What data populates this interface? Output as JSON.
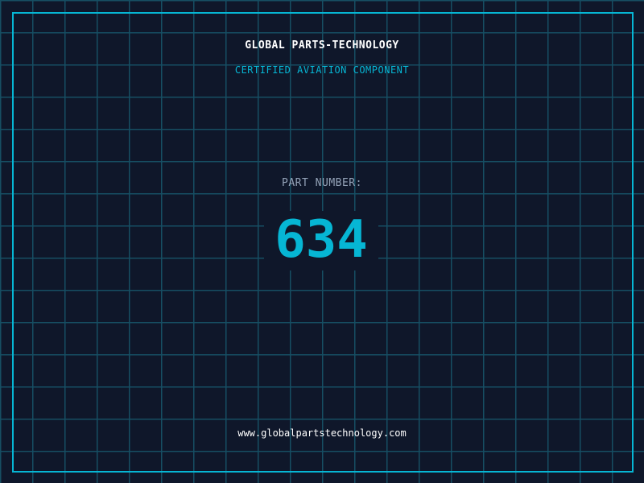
{
  "header": {
    "title": "GLOBAL PARTS-TECHNOLOGY",
    "subtitle": "CERTIFIED AVIATION COMPONENT"
  },
  "part": {
    "label": "PART NUMBER:",
    "number": "634"
  },
  "footer": {
    "url": "www.globalpartstechnology.com"
  },
  "colors": {
    "background": "#0f172a",
    "accent": "#06b6d4",
    "grid": "#164e63",
    "label": "#94a3b8"
  }
}
